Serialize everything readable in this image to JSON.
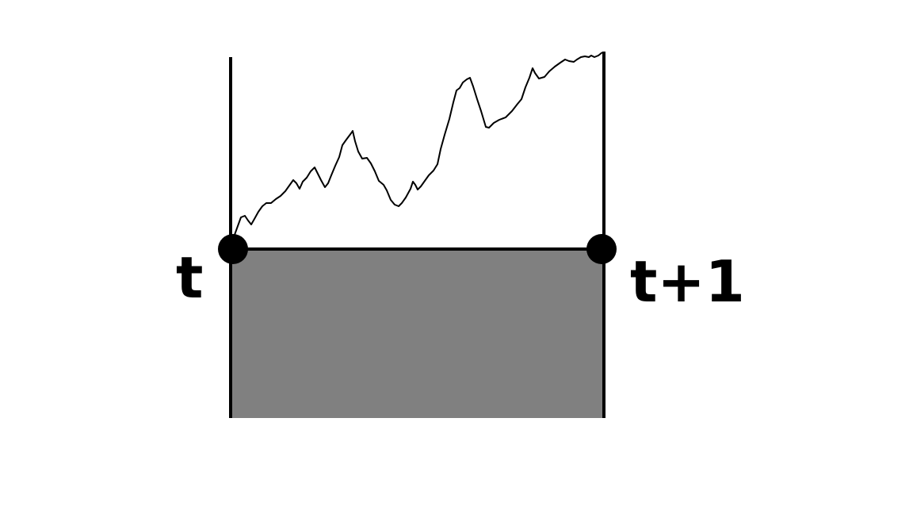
{
  "labels": {
    "start": "t",
    "end": "t+1"
  },
  "colors": {
    "line": "#000000",
    "box_fill": "#808080",
    "background": "#ffffff",
    "point": "#000000"
  }
}
